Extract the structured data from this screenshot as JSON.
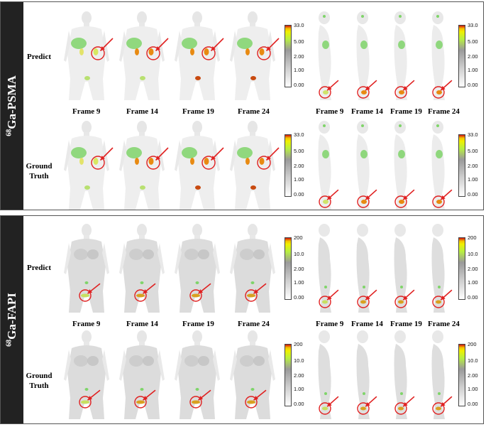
{
  "panels": [
    {
      "tracer_prefix": "68",
      "tracer_name": "Ga-PSMA",
      "rows": [
        "Predict",
        "Ground Truth"
      ],
      "frames": [
        "Frame 9",
        "Frame 14",
        "Frame 19",
        "Frame 24"
      ],
      "colorbar_ticks": [
        "33.0",
        "5.00",
        "2.00",
        "1.00",
        "0.00"
      ]
    },
    {
      "tracer_prefix": "68",
      "tracer_name": "Ga-FAPI",
      "rows": [
        "Predict",
        "Ground Truth"
      ],
      "frames": [
        "Frame 9",
        "Frame 14",
        "Frame 19",
        "Frame 24"
      ],
      "colorbar_ticks": [
        "200",
        "10.0",
        "2.00",
        "1.00",
        "0.00"
      ]
    }
  ],
  "colors": {
    "lesion_marker": "#e02020",
    "liver_uptake": "#7fd46a",
    "hot_uptake": "#e88a12",
    "body_gray": "#c8c8c8"
  }
}
